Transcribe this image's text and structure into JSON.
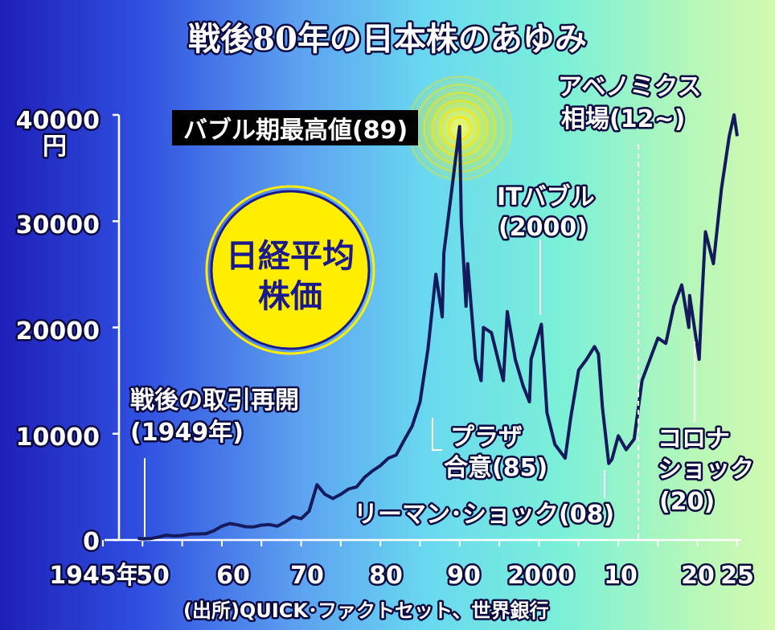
{
  "title": "戦後80年の日本株のあゆみ",
  "source": "(出所)QUICK･ファクトセット、世界銀行",
  "badge": {
    "line1": "日経平均",
    "line2": "株価"
  },
  "colors": {
    "line": "#141a5c",
    "badge_fill": "#ffee00",
    "badge_text": "#1a1a8c",
    "glow": "#ffe600"
  },
  "annotations": {
    "bubble_peak": "バブル期最高値(89)",
    "abenomics_1": "アベノミクス",
    "abenomics_2": "相場(12~)",
    "it_bubble_1": "ITバブル",
    "it_bubble_2": "(2000)",
    "postwar_1": "戦後の取引再開",
    "postwar_2": "(1949年)",
    "plaza_1": "プラザ",
    "plaza_2": "合意(85)",
    "lehman": "リーマン･ショック(08)",
    "corona_1": "コロナ",
    "corona_2": "ショック",
    "corona_3": "(20)"
  },
  "chart_data": {
    "type": "line",
    "title": "戦後80年の日本株のあゆみ",
    "ylabel": "円",
    "ylim": [
      0,
      40000
    ],
    "xlim": [
      1945,
      2025
    ],
    "grid": false,
    "y_ticks": [
      "0",
      "10000",
      "20000",
      "30000",
      "40000"
    ],
    "x_ticks": [
      "1945年",
      "50",
      "60",
      "70",
      "80",
      "90",
      "2000",
      "10",
      "20",
      "25"
    ],
    "series": [
      {
        "x": [
          1949.4,
          1950,
          1951,
          1952,
          1953,
          1954,
          1955,
          1956,
          1957,
          1958,
          1959,
          1960,
          1961,
          1962,
          1963,
          1964,
          1965,
          1966,
          1967,
          1968,
          1969,
          1970,
          1971,
          1972,
          1973,
          1974,
          1975,
          1976,
          1977,
          1978,
          1979,
          1980,
          1981,
          1982,
          1983,
          1984,
          1985,
          1986,
          1987,
          1987.8,
          1988,
          1989,
          1989.99,
          1990.2,
          1990.8,
          1991,
          1992,
          1992.7,
          1993,
          1994,
          1995,
          1995.5,
          1996,
          1997,
          1998,
          1998.8,
          1999,
          2000.3,
          2001,
          2002,
          2003.3,
          2004,
          2005,
          2006,
          2007,
          2007.5,
          2008,
          2008.8,
          2009.2,
          2010,
          2011,
          2012,
          2013,
          2014,
          2015,
          2016,
          2017,
          2018,
          2018.9,
          2019,
          2020.2,
          2020.5,
          2021,
          2022,
          2023,
          2024,
          2024.6,
          2025
        ],
        "values": [
          170,
          100,
          130,
          280,
          450,
          380,
          420,
          560,
          570,
          600,
          880,
          1300,
          1550,
          1420,
          1250,
          1230,
          1400,
          1450,
          1300,
          1700,
          2200,
          2000,
          2700,
          5200,
          4300,
          3900,
          4300,
          4800,
          5000,
          5900,
          6500,
          7000,
          7700,
          8000,
          9400,
          10700,
          13000,
          18000,
          25000,
          21000,
          27000,
          33000,
          38900,
          30000,
          22000,
          26000,
          17000,
          15000,
          20000,
          19500,
          16500,
          15000,
          21500,
          17000,
          14500,
          13000,
          17000,
          20300,
          12000,
          9000,
          7700,
          11500,
          16000,
          17000,
          18200,
          17500,
          12500,
          7200,
          7600,
          9800,
          8500,
          9500,
          15000,
          17000,
          19000,
          18500,
          22000,
          24000,
          20000,
          23000,
          17000,
          22000,
          29000,
          26000,
          33000,
          38000,
          40000,
          38000
        ]
      }
    ]
  }
}
